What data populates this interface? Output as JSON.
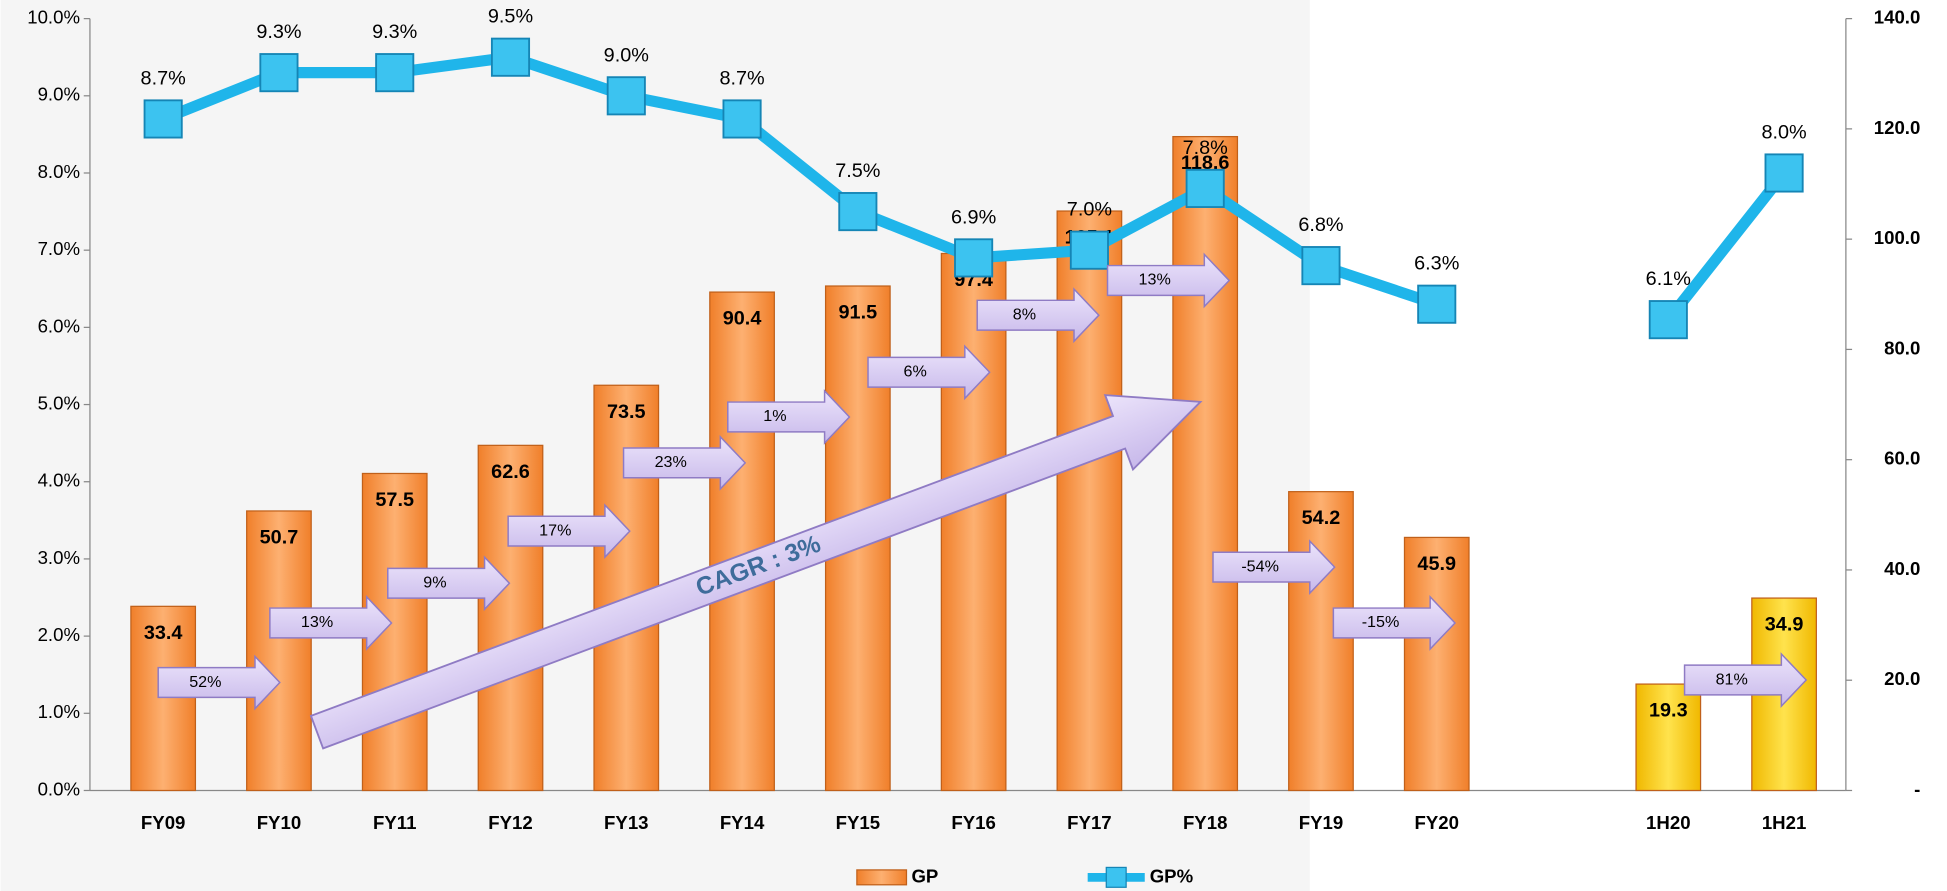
{
  "chart_data": {
    "type": "bar-line",
    "categories": [
      "FY09",
      "FY10",
      "FY11",
      "FY12",
      "FY13",
      "FY14",
      "FY15",
      "FY16",
      "FY17",
      "FY18",
      "FY19",
      "FY20",
      null,
      "1H20",
      "1H21"
    ],
    "series": [
      {
        "name": "GP",
        "type": "bar",
        "axis": "y2",
        "color": "#f79646",
        "colors": [
          "#f79646",
          "#f79646",
          "#f79646",
          "#f79646",
          "#f79646",
          "#f79646",
          "#f79646",
          "#f79646",
          "#f79646",
          "#f79646",
          "#f79646",
          "#f79646",
          null,
          "#ffcc00",
          "#ffcc00"
        ],
        "values": [
          33.4,
          50.7,
          57.5,
          62.6,
          73.5,
          90.4,
          91.5,
          97.4,
          105.1,
          118.6,
          54.2,
          45.9,
          null,
          19.3,
          34.9
        ]
      },
      {
        "name": "GP%",
        "type": "line",
        "axis": "y",
        "color": "#1fb5ea",
        "values": [
          8.7,
          9.3,
          9.3,
          9.5,
          9.0,
          8.7,
          7.5,
          6.9,
          7.0,
          7.8,
          6.8,
          6.3,
          null,
          6.1,
          8.0
        ],
        "value_labels": [
          "8.7%",
          "9.3%",
          "9.3%",
          "9.5%",
          "9.0%",
          "8.7%",
          "7.5%",
          "6.9%",
          "7.0%",
          "7.8%",
          "6.8%",
          "6.3%",
          null,
          "6.1%",
          "8.0%"
        ]
      }
    ],
    "ylim": [
      0,
      10
    ],
    "yticks": [
      {
        "value": 0,
        "label": "0.0%"
      },
      {
        "value": 1,
        "label": "1.0%"
      },
      {
        "value": 2,
        "label": "2.0%"
      },
      {
        "value": 3,
        "label": "3.0%"
      },
      {
        "value": 4,
        "label": "4.0%"
      },
      {
        "value": 5,
        "label": "5.0%"
      },
      {
        "value": 6,
        "label": "6.0%"
      },
      {
        "value": 7,
        "label": "7.0%"
      },
      {
        "value": 8,
        "label": "8.0%"
      },
      {
        "value": 9,
        "label": "9.0%"
      },
      {
        "value": 10,
        "label": "10.0%"
      }
    ],
    "y2lim": [
      0,
      140
    ],
    "y2ticks": [
      {
        "value": 0,
        "label": "-"
      },
      {
        "value": 20,
        "label": "20.0"
      },
      {
        "value": 40,
        "label": "40.0"
      },
      {
        "value": 60,
        "label": "60.0"
      },
      {
        "value": 80,
        "label": "80.0"
      },
      {
        "value": 100,
        "label": "100.0"
      },
      {
        "value": 120,
        "label": "120.0"
      },
      {
        "value": 140,
        "label": "140.0"
      }
    ],
    "growth_labels": [
      "52%",
      "13%",
      "9%",
      "17%",
      "23%",
      "1%",
      "6%",
      "8%",
      "13%",
      "-54%",
      "-15%",
      "81%"
    ],
    "cagr_label": "CAGR  : 3%",
    "legend": "bottom"
  }
}
